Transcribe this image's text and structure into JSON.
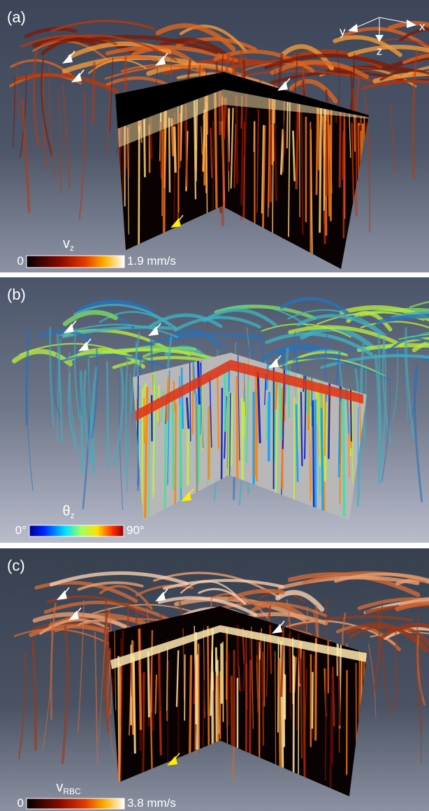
{
  "panels": [
    {
      "label": "(a)",
      "colorbar": {
        "symbol": "v",
        "subscript": "z",
        "min_label": "0",
        "max_label": "1.9 mm/s"
      }
    },
    {
      "label": "(b)",
      "colorbar": {
        "symbol": "θ",
        "subscript": "z",
        "min_label": "0°",
        "max_label": "90°"
      }
    },
    {
      "label": "(c)",
      "colorbar": {
        "symbol": "v",
        "subscript": "RBC",
        "min_label": "0",
        "max_label": "3.8 mm/s"
      }
    }
  ],
  "axes": {
    "y": "y",
    "x": "x",
    "z": "z"
  }
}
